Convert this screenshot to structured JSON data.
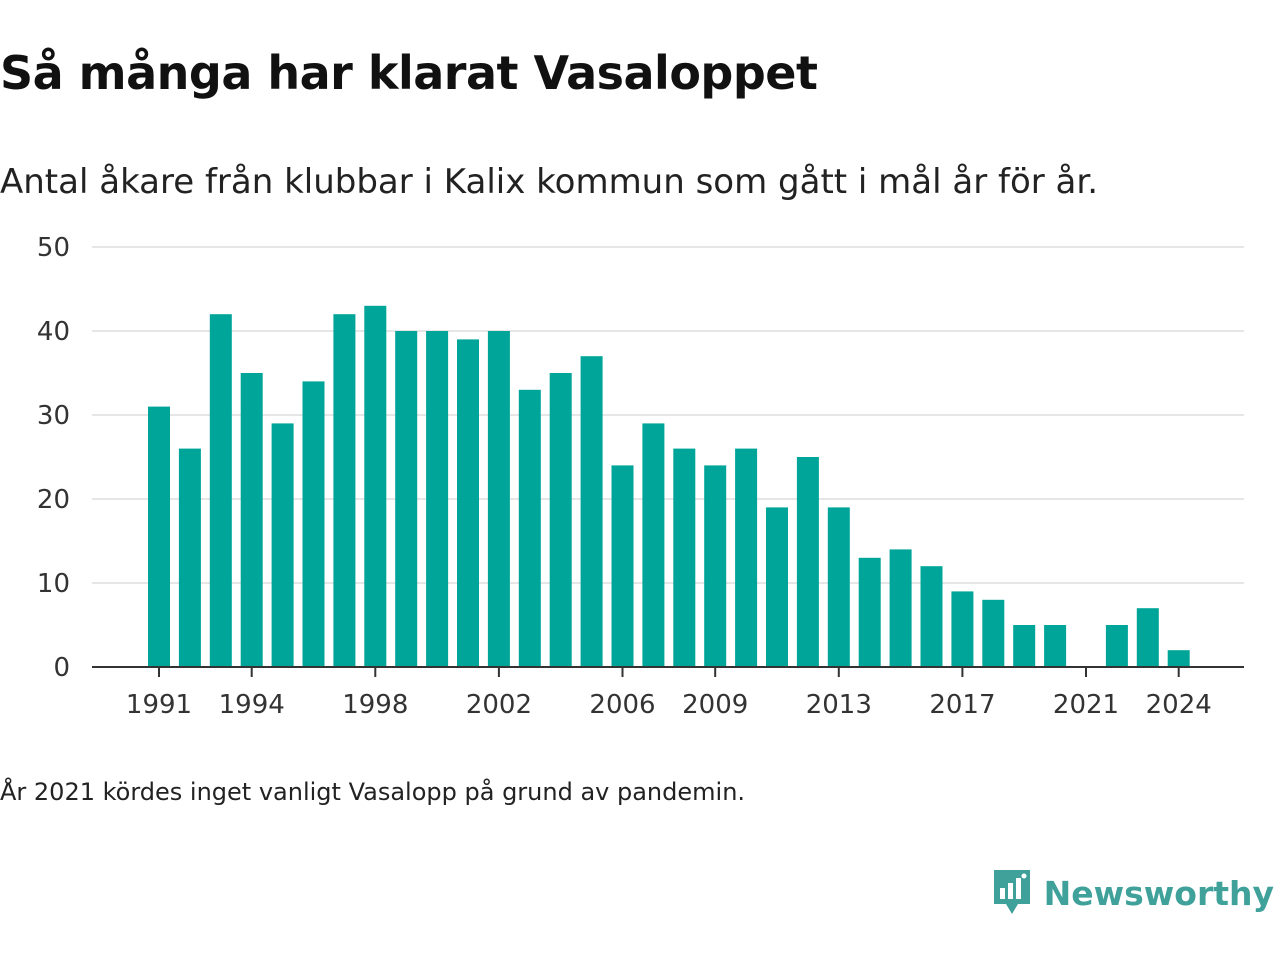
{
  "header": {
    "title": "Så många har klarat Vasaloppet",
    "subtitle": "Antal åkare från klubbar i Kalix kommun som gått i mål år för år."
  },
  "footer": {
    "note": "År 2021 kördes inget vanligt Vasalopp på grund av pandemin.",
    "brand": "Newsworthy",
    "brand_icon": "newsworthy-logo-icon"
  },
  "colors": {
    "bar": "#00a59a",
    "grid": "#dddddd",
    "axis": "#333333",
    "brand": "#3fa19a"
  },
  "chart_data": {
    "type": "bar",
    "categories": [
      1991,
      1992,
      1993,
      1994,
      1995,
      1996,
      1997,
      1998,
      1999,
      2000,
      2001,
      2002,
      2003,
      2004,
      2005,
      2006,
      2007,
      2008,
      2009,
      2010,
      2011,
      2012,
      2013,
      2014,
      2015,
      2016,
      2017,
      2018,
      2019,
      2020,
      2021,
      2022,
      2023,
      2024
    ],
    "values": [
      31,
      26,
      42,
      35,
      29,
      34,
      42,
      43,
      40,
      40,
      39,
      40,
      33,
      35,
      37,
      24,
      29,
      26,
      24,
      26,
      19,
      25,
      19,
      13,
      14,
      12,
      9,
      8,
      5,
      5,
      null,
      5,
      7,
      2
    ],
    "x_tick_labels": [
      "1991",
      "1994",
      "1998",
      "2002",
      "2006",
      "2009",
      "2013",
      "2017",
      "2021",
      "2024"
    ],
    "y_ticks": [
      0,
      10,
      20,
      30,
      40,
      50
    ],
    "ylim": [
      0,
      50
    ],
    "title": "Så många har klarat Vasaloppet",
    "subtitle": "Antal åkare från klubbar i Kalix kommun som gått i mål år för år.",
    "xlabel": "",
    "ylabel": "",
    "grid": "horizontal",
    "legend": "none"
  }
}
